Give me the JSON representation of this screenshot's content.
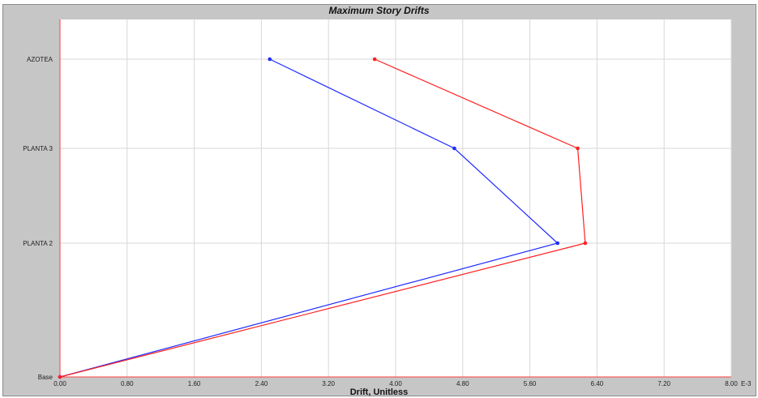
{
  "chart_data": {
    "type": "line",
    "title": "Maximum Story Drifts",
    "xlabel": "Drift, Unitless",
    "x_tick_labels": [
      "0.00",
      "0.80",
      "1.60",
      "2.40",
      "3.20",
      "4.00",
      "4.80",
      "5.60",
      "6.40",
      "7.20",
      "8.00"
    ],
    "x_ticks": [
      0,
      0.8,
      1.6,
      2.4,
      3.2,
      4.0,
      4.8,
      5.6,
      6.4,
      7.2,
      8.0
    ],
    "x_unit_suffix": "E-3",
    "xlim": [
      0,
      8.0
    ],
    "y_categories": [
      "Base",
      "PLANTA 2",
      "PLANTA 3",
      "AZOTEA"
    ],
    "grid": true,
    "series": [
      {
        "color": "#1f2bff",
        "values": [
          0,
          5.93,
          4.7,
          2.5
        ]
      },
      {
        "color": "#ff1f1f",
        "values": [
          0,
          6.26,
          6.17,
          3.75
        ]
      }
    ]
  },
  "colors": {
    "panel_background": "#c6c6c6",
    "plot_background": "#ffffff",
    "grid": "#d7d7d7",
    "axis": "#ff4040"
  }
}
